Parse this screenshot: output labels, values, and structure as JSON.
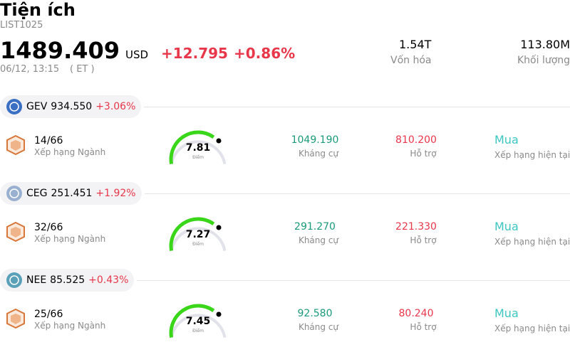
{
  "header": {
    "title": "Tiện ích",
    "code": "LIST1025",
    "price": "1489.409",
    "currency": "USD",
    "change": "+12.795",
    "change_pct": "+0.86%",
    "time": "06/12, 13:15",
    "timezone": "( ET )",
    "stats": [
      {
        "value": "1.54T",
        "label": "Vốn hóa"
      },
      {
        "value": "113.80M",
        "label": "Khối lượng"
      }
    ]
  },
  "stocks": [
    {
      "ticker": "GEV",
      "price": "934.550",
      "change": "+3.06%",
      "rank": "14/66",
      "rank_label": "Xếp hạng Ngành",
      "score": "7.81",
      "score_label": "Điểm",
      "resistance": "1049.190",
      "resistance_label": "Kháng cự",
      "support": "810.200",
      "support_label": "Hỗ trợ",
      "rating": "Mua",
      "rating_label": "Xếp hạng hiện tại"
    },
    {
      "ticker": "CEG",
      "price": "251.451",
      "change": "+1.92%",
      "rank": "32/66",
      "rank_label": "Xếp hạng Ngành",
      "score": "7.27",
      "score_label": "Điểm",
      "resistance": "291.270",
      "resistance_label": "Kháng cự",
      "support": "221.330",
      "support_label": "Hỗ trợ",
      "rating": "Mua",
      "rating_label": "Xếp hạng hiện tại"
    },
    {
      "ticker": "NEE",
      "price": "85.525",
      "change": "+0.43%",
      "rank": "25/66",
      "rank_label": "Xếp hạng Ngành",
      "score": "7.45",
      "score_label": "Điểm",
      "resistance": "92.580",
      "resistance_label": "Kháng cự",
      "support": "80.240",
      "support_label": "Hỗ trợ",
      "rating": "Mua",
      "rating_label": "Xếp hạng hiện tại"
    }
  ]
}
